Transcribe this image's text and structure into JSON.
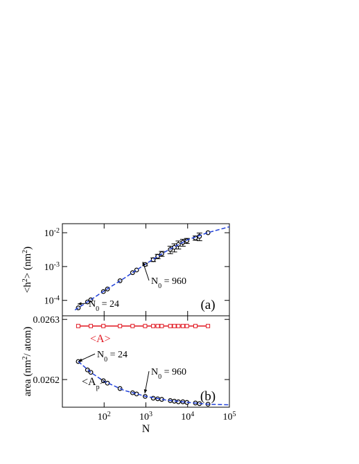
{
  "chart_data": [
    {
      "type": "scatter",
      "panel_label": "(a)",
      "ylabel": [
        "<h",
        "2",
        "> (nm",
        "2",
        ")"
      ],
      "xscale": "log",
      "yscale": "log",
      "xlim": [
        10,
        100000
      ],
      "ylim": [
        3.5e-05,
        0.0185
      ],
      "yticks": [
        {
          "value": 0.01,
          "label": "10",
          "exponent": "-2"
        },
        {
          "value": 0.001,
          "label": "10",
          "exponent": "-3"
        },
        {
          "value": 0.0001,
          "label": "10",
          "exponent": "-4"
        }
      ],
      "series": [
        {
          "color": "#000000",
          "marker": "circle",
          "x": [
            24,
            40,
            48,
            96,
            120,
            240,
            480,
            600,
            960,
            1500,
            1920,
            2400,
            3840,
            4800,
            6000,
            7680,
            9600,
            15360,
            19200,
            30720
          ],
          "values": [
            6e-05,
            9e-05,
            0.000104,
            0.000182,
            0.000217,
            0.00038,
            0.00066,
            0.00079,
            0.00115,
            0.0016,
            0.002,
            0.0024,
            0.0032,
            0.0037,
            0.0045,
            0.0052,
            0.0058,
            0.007,
            0.0078,
            0.01
          ],
          "errors": [
            null,
            null,
            null,
            null,
            null,
            null,
            null,
            null,
            0.0001,
            0.0002,
            0.0003,
            0.0004,
            0.0008,
            0.001,
            0.0012,
            0.0012,
            0.001,
            0.001,
            0.002,
            null
          ]
        },
        {
          "color": "#1f3fd8",
          "line": "dashed",
          "x": [
            20,
            50,
            100,
            300,
            1000,
            3000,
            10000,
            30000,
            100000
          ],
          "values": [
            5.2e-05,
            0.000108,
            0.00019,
            0.00045,
            0.0012,
            0.0028,
            0.0062,
            0.01,
            0.015
          ]
        }
      ],
      "annotations": [
        {
          "text": [
            "N",
            "0",
            " = 24"
          ]
        },
        {
          "text": [
            "N",
            "0",
            " = 960"
          ]
        }
      ]
    },
    {
      "type": "scatter",
      "panel_label": "(b)",
      "ylabel": [
        "area (nm",
        "2",
        "/ atom)"
      ],
      "xlabel": "N",
      "xscale": "log",
      "xlim": [
        10,
        100000
      ],
      "ylim": [
        0.026154,
        0.026306
      ],
      "xticks": [
        {
          "value": 100,
          "label": "10",
          "exponent": "2"
        },
        {
          "value": 1000,
          "label": "10",
          "exponent": "3"
        },
        {
          "value": 10000,
          "label": "10",
          "exponent": "4"
        },
        {
          "value": 100000,
          "label": "10",
          "exponent": "5"
        }
      ],
      "yticks": [
        0.0263,
        0.0262
      ],
      "series": [
        {
          "name": "<A>",
          "color": "#e0141e",
          "marker": "square",
          "line": "solid",
          "x": [
            24,
            48,
            96,
            240,
            480,
            960,
            1500,
            1920,
            2400,
            3840,
            4800,
            6000,
            7680,
            9600,
            15360,
            30720
          ],
          "values": [
            0.026289,
            0.026289,
            0.026289,
            0.026289,
            0.026289,
            0.026289,
            0.026289,
            0.026289,
            0.026289,
            0.026289,
            0.026289,
            0.026289,
            0.026289,
            0.026289,
            0.026289,
            0.026289
          ]
        },
        {
          "name": [
            "<A",
            "p",
            ">"
          ],
          "color": "#000000",
          "marker": "circle",
          "x": [
            24,
            40,
            48,
            96,
            120,
            240,
            480,
            600,
            960,
            1500,
            1920,
            2400,
            3840,
            4800,
            6000,
            7680,
            9600,
            15360,
            19200,
            30720
          ],
          "values": [
            0.02623,
            0.026216,
            0.026212,
            0.026198,
            0.026194,
            0.026185,
            0.026178,
            0.026176,
            0.026172,
            0.026169,
            0.026168,
            0.026167,
            0.026165,
            0.026164,
            0.026163,
            0.026163,
            0.026162,
            0.026161,
            0.02616,
            0.026159
          ]
        },
        {
          "color": "#1f3fd8",
          "line": "dashed",
          "x": [
            24,
            50,
            100,
            300,
            1000,
            3000,
            10000,
            30000,
            100000
          ],
          "values": [
            0.02623,
            0.026211,
            0.026197,
            0.026182,
            0.026172,
            0.026166,
            0.026162,
            0.026159,
            0.026158
          ]
        }
      ],
      "annotations": [
        {
          "text": [
            "N",
            "0",
            " = 24"
          ]
        },
        {
          "text": [
            "N",
            "0",
            " = 960"
          ]
        }
      ]
    }
  ]
}
